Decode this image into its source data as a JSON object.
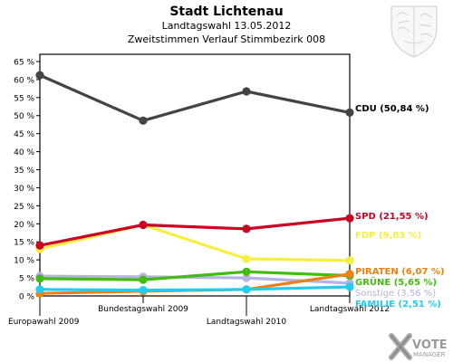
{
  "chart_data": {
    "type": "line",
    "title": "Stadt Lichtenau",
    "subtitle_lines": [
      "Landtagswahl 13.05.2012",
      "Zweitstimmen Verlauf Stimmbezirk 008"
    ],
    "categories": [
      "Europawahl 2009",
      "Bundestagswahl 2009",
      "Landtagswahl 2010",
      "Landtagswahl 2012"
    ],
    "y_ticks": [
      "0 %",
      "5 %",
      "10 %",
      "15 %",
      "20 %",
      "25 %",
      "30 %",
      "35 %",
      "40 %",
      "45 %",
      "50 %",
      "55 %",
      "60 %",
      "65 %"
    ],
    "ylim": [
      0,
      67
    ],
    "grid": false,
    "series": [
      {
        "name": "Sonstige",
        "label": "Sonstige (3,56 %)",
        "color": "#b3b3e6",
        "values": [
          5.5,
          5.3,
          5.0,
          3.56
        ]
      },
      {
        "name": "GRÜNE",
        "label": "GRÜNE (5,65 %)",
        "color": "#44bb11",
        "values": [
          4.8,
          4.5,
          6.7,
          5.65
        ]
      },
      {
        "name": "PIRATEN",
        "label": "PIRATEN (6,07 %)",
        "color": "#ee7f11",
        "values": [
          0.7,
          1.3,
          1.8,
          6.07
        ]
      },
      {
        "name": "FAMILIE",
        "label": "FAMILIE (2,51 %)",
        "color": "#22ccee",
        "values": [
          1.8,
          1.6,
          1.8,
          2.51
        ]
      },
      {
        "name": "FDP",
        "label": "FDP (9,83 %)",
        "color": "#f5ef44",
        "values": [
          13.0,
          19.7,
          10.3,
          9.83
        ]
      },
      {
        "name": "SPD",
        "label": "SPD (21,55 %)",
        "color": "#cc0022",
        "values": [
          14.0,
          19.7,
          18.6,
          21.55
        ]
      },
      {
        "name": "CDU",
        "label": "CDU (50,84 %)",
        "color": "#444444",
        "values": [
          61.2,
          48.6,
          56.7,
          50.84
        ]
      }
    ]
  },
  "branding": {
    "logo_line1": "VOTE",
    "logo_line2": "MANAGER"
  }
}
